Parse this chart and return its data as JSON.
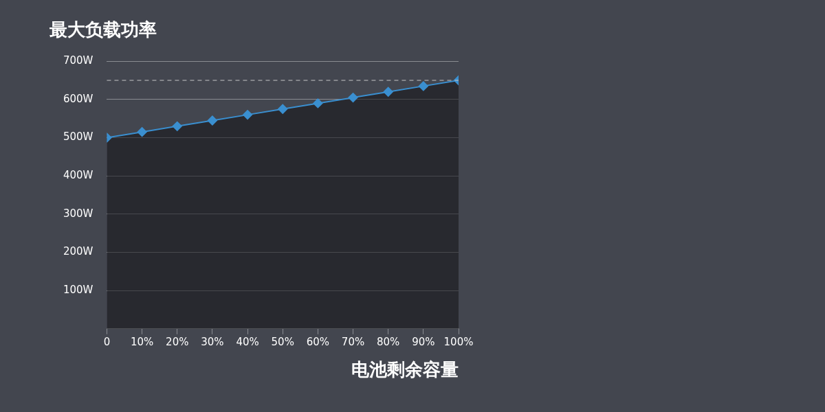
{
  "chart_data": {
    "type": "line",
    "title": "最大负载功率",
    "xlabel": "电池剩余容量",
    "x": [
      0,
      10,
      20,
      30,
      40,
      50,
      60,
      70,
      80,
      90,
      100
    ],
    "series": [
      {
        "color": "#3a8fd0",
        "values": [
          500,
          515,
          530,
          545,
          560,
          575,
          590,
          605,
          620,
          635,
          650
        ]
      }
    ],
    "xlim": [
      0,
      100
    ],
    "xticks": [
      {
        "value": 0,
        "label": "0"
      },
      {
        "value": 10,
        "label": "10%"
      },
      {
        "value": 20,
        "label": "20%"
      },
      {
        "value": 30,
        "label": "30%"
      },
      {
        "value": 40,
        "label": "40%"
      },
      {
        "value": 50,
        "label": "50%"
      },
      {
        "value": 60,
        "label": "60%"
      },
      {
        "value": 70,
        "label": "70%"
      },
      {
        "value": 80,
        "label": "80%"
      },
      {
        "value": 90,
        "label": "90%"
      },
      {
        "value": 100,
        "label": "100%"
      }
    ],
    "ylim": [
      0,
      700
    ],
    "yticks": [
      {
        "value": 100,
        "label": "100W"
      },
      {
        "value": 200,
        "label": "200W"
      },
      {
        "value": 300,
        "label": "300W"
      },
      {
        "value": 400,
        "label": "400W"
      },
      {
        "value": 500,
        "label": "500W"
      },
      {
        "value": 600,
        "label": "600W"
      },
      {
        "value": 700,
        "label": "700W"
      }
    ],
    "ref_lines": [
      {
        "axis": "y",
        "value": 650,
        "color": "#c8c8c8",
        "line_style": "dashed"
      }
    ],
    "grid": "y",
    "legend": false,
    "marker": "diamond",
    "line_style": "solid"
  }
}
